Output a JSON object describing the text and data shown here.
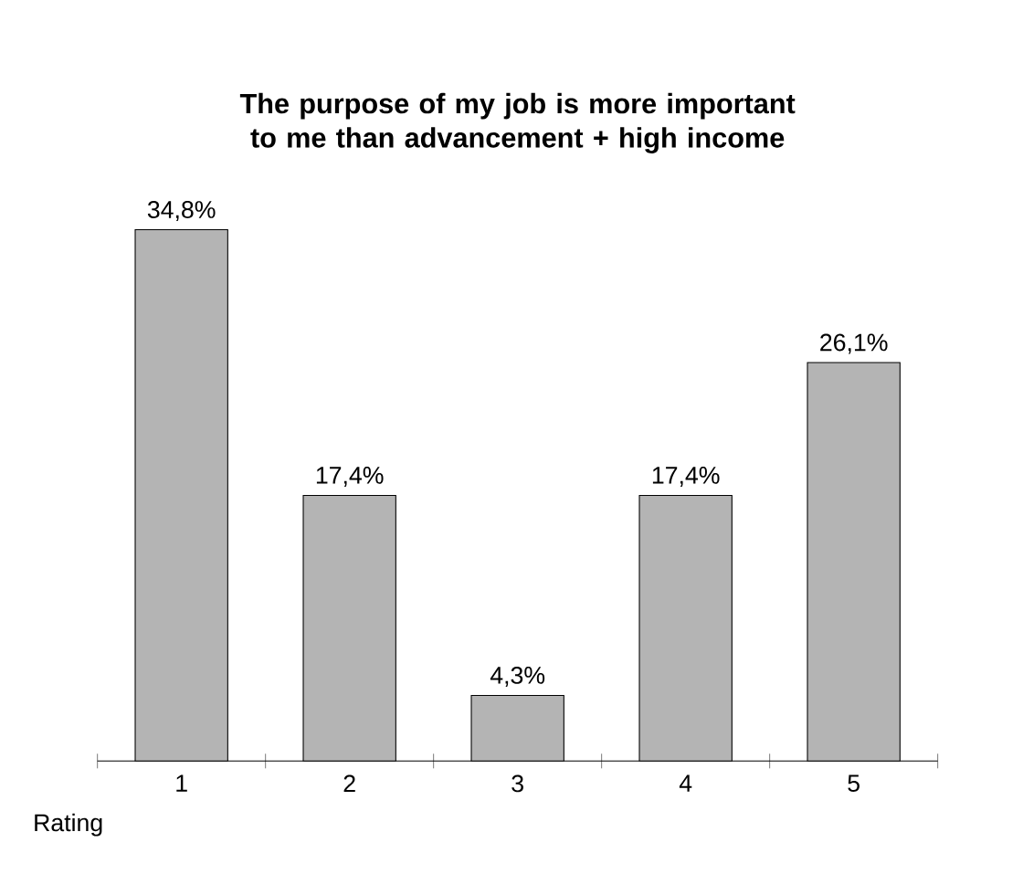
{
  "chart_data": {
    "type": "bar",
    "title": "The purpose of my job is more important to me than advancement + high income",
    "xlabel": "Rating",
    "categories": [
      "1",
      "2",
      "3",
      "4",
      "5"
    ],
    "values": [
      34.8,
      17.4,
      4.3,
      17.4,
      26.1
    ],
    "value_labels": [
      "34,8%",
      "17,4%",
      "4,3%",
      "17,4%",
      "26,1%"
    ],
    "color": "#b4b4b4"
  }
}
